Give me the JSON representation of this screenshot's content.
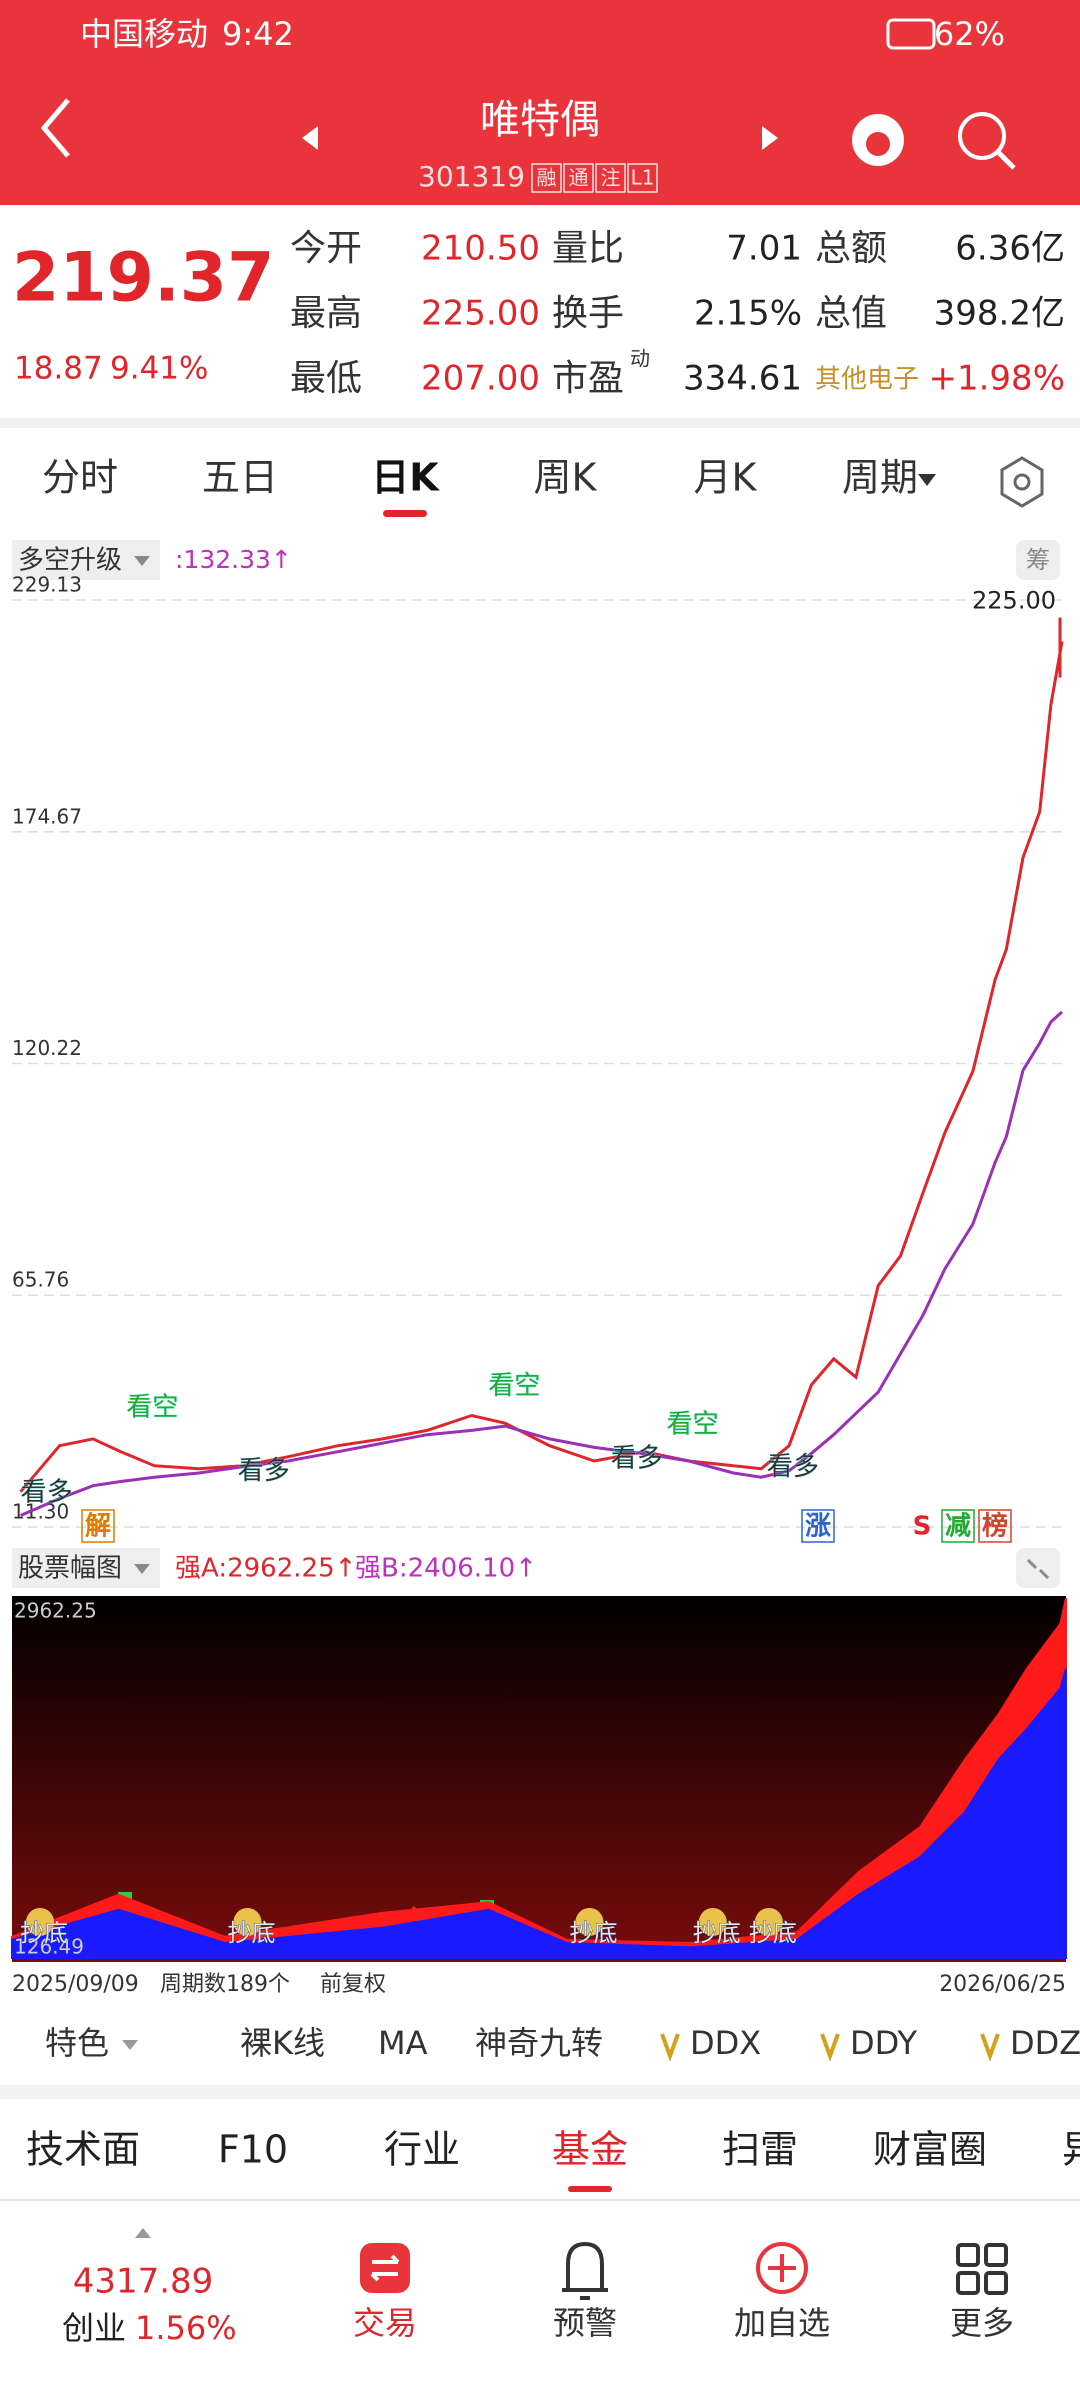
{
  "status_bar": {
    "carrier": "中国移动",
    "time": "9:42",
    "battery": "62%"
  },
  "header": {
    "title": "唯特偶",
    "code": "301319",
    "badges": [
      "融",
      "通",
      "注",
      "L1"
    ]
  },
  "quote": {
    "price": "219.37",
    "change": "18.87",
    "change_pct": "9.41%",
    "fields": [
      {
        "label": "今开",
        "value": "210.50"
      },
      {
        "label": "量比",
        "value": "7.01"
      },
      {
        "label": "总额",
        "value": "6.36亿"
      },
      {
        "label": "最高",
        "value": "225.00"
      },
      {
        "label": "换手",
        "value": "2.15%"
      },
      {
        "label": "总值",
        "value": "398.2亿"
      },
      {
        "label": "最低",
        "value": "207.00"
      },
      {
        "label": "市盈",
        "sup": "动",
        "value": "334.61"
      },
      {
        "label": "其他电子",
        "value": "+1.98%"
      }
    ]
  },
  "period_tabs": {
    "items": [
      "分时",
      "五日",
      "日K",
      "周K",
      "月K",
      "周期"
    ],
    "active": 2
  },
  "chart_data": [
    {
      "type": "line",
      "indicator": "多空升级",
      "indicator_value": ":132.33↑",
      "chip_button": "筹",
      "xlim": [
        0,
        188
      ],
      "ylim": [
        {
          "value": 11.3,
          "label": "11.30"
        },
        229.13
      ],
      "yticks": [
        229.13,
        174.67,
        120.22,
        65.76,
        {
          "value": 11.3,
          "label": "11.30"
        }
      ],
      "grid": true,
      "x": [
        1,
        8,
        14,
        19,
        25,
        33,
        41,
        49,
        58,
        66,
        74,
        82,
        88,
        96,
        104,
        113,
        121,
        129,
        134,
        139,
        143,
        147,
        151,
        155,
        159,
        163,
        167,
        172,
        176,
        178,
        181,
        184,
        186,
        188
      ],
      "series": [
        {
          "color": "#e0252b",
          "values": [
            19.6,
            30.4,
            32,
            29,
            25.7,
            25,
            25.7,
            27.8,
            30.4,
            32,
            34,
            37.5,
            35.7,
            30.4,
            26.8,
            29,
            26.8,
            25.7,
            25,
            30.4,
            44.7,
            50.8,
            46.5,
            68,
            75,
            89.7,
            104,
            118.4,
            140,
            147,
            168.6,
            179.4,
            204.5,
            219.37
          ]
        },
        {
          "color": "#9b2fb5",
          "values": [
            14,
            18,
            21,
            22,
            23,
            24,
            25.5,
            26.8,
            29,
            31,
            33,
            34,
            35,
            32,
            30,
            28.5,
            26.8,
            24,
            23,
            24.5,
            28.6,
            33,
            38,
            43,
            52,
            61,
            72,
            82.5,
            97,
            103,
            118.6,
            125,
            130,
            132.33
          ]
        }
      ],
      "max_marker": {
        "value": 225,
        "label": "225.00"
      },
      "annotations": [
        {
          "text": "看多",
          "x": 1,
          "y": 16,
          "color": "#333333"
        },
        {
          "text": "看空",
          "x": 20,
          "y": 36,
          "color": "#22aa33"
        },
        {
          "text": "看多",
          "x": 40,
          "y": 21,
          "color": "#333333"
        },
        {
          "text": "看空",
          "x": 85,
          "y": 41,
          "color": "#22aa33"
        },
        {
          "text": "看多",
          "x": 107,
          "y": 24,
          "color": "#333333"
        },
        {
          "text": "看空",
          "x": 117,
          "y": 32,
          "color": "#22aa33"
        },
        {
          "text": "看多",
          "x": 135,
          "y": 22,
          "color": "#333333"
        }
      ],
      "signals": [
        "解",
        "涨",
        "S",
        "减",
        "榜"
      ]
    },
    {
      "type": "area",
      "indicator": "股票幅图",
      "xlim": [
        0,
        188
      ],
      "ylim": [
        126.49,
        2962.25
      ],
      "yticks": [
        2962.25,
        126.49
      ],
      "x": [
        0,
        19,
        38,
        66,
        85,
        99,
        121,
        140,
        151,
        162,
        170,
        176,
        181,
        187,
        188
      ],
      "series": [
        {
          "name": "强A:2962.25↑",
          "color": "#ff1a1a",
          "values": [
            293,
            625,
            293,
            482,
            565,
            269,
            245,
            328,
            803,
            1158,
            1692,
            2048,
            2404,
            2760,
            2962.25
          ]
        },
        {
          "name": "强B:2406.10↑",
          "color": "#1a1aff",
          "values": [
            269,
            506,
            245,
            364,
            506,
            245,
            210,
            269,
            625,
            921,
            1277,
            1692,
            1930,
            2250,
            2406.1
          ]
        }
      ],
      "annotations": [
        {
          "text": "抄底",
          "x": 5,
          "y": 300
        },
        {
          "text": "抄底",
          "x": 42,
          "y": 300
        },
        {
          "text": "抄底",
          "x": 103,
          "y": 300
        },
        {
          "text": "抄底",
          "x": 125,
          "y": 300
        },
        {
          "text": "抄底",
          "x": 135,
          "y": 300
        }
      ],
      "x_labels": [
        "2025/09/09",
        "2026/06/25"
      ],
      "period_count": "周期数189个",
      "adjust": "前复权"
    }
  ],
  "indicator_tabs": [
    "特色",
    "裸K线",
    "MA",
    "神奇九转",
    "DDX",
    "DDY",
    "DDZ"
  ],
  "bottom_tabs": {
    "items": [
      "技术面",
      "F10",
      "行业",
      "基金",
      "扫雷",
      "财富圈",
      "异"
    ],
    "active": 3
  },
  "bottom_nav": {
    "index_value": "4317.89",
    "index_name": "创业",
    "index_change": "1.56%",
    "items": [
      "交易",
      "预警",
      "加自选",
      "更多"
    ]
  }
}
